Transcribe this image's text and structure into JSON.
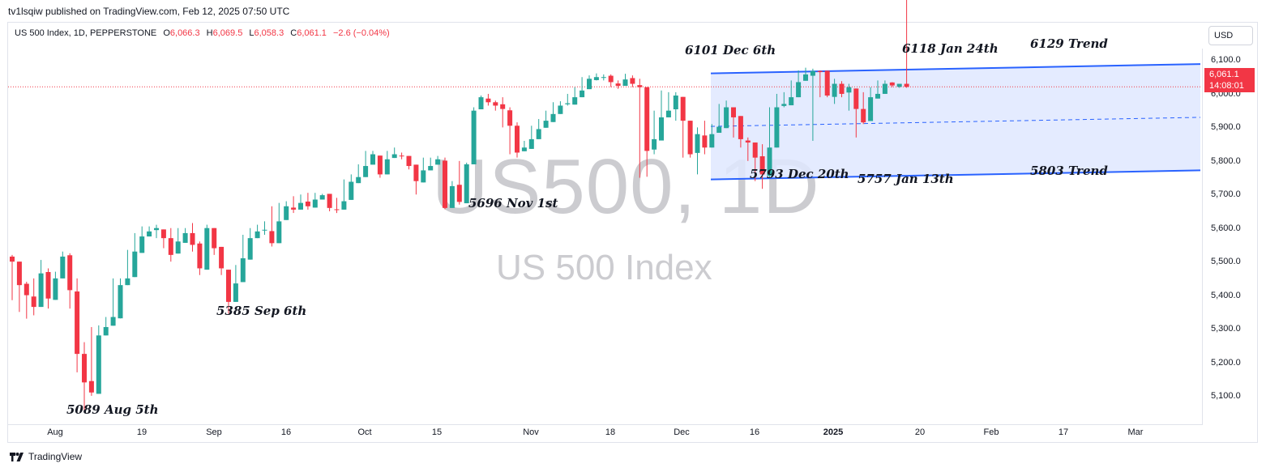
{
  "header": {
    "publisher_line": "tv1lsqiw published on TradingView.com, Feb 12, 2025 07:50 UTC"
  },
  "symbol_info": {
    "name": "US 500 Index, 1D, PEPPERSTONE",
    "open_label": "O",
    "open": "6,066.3",
    "high_label": "H",
    "high": "6,069.5",
    "low_label": "L",
    "low": "6,058.3",
    "close_label": "C",
    "close": "6,061.1",
    "change": "−2.6 (−0.04%)"
  },
  "currency_button": "USD",
  "watermark": {
    "symbol": "US500, 1D",
    "description": "US 500 Index"
  },
  "last_price": {
    "price": "6,061.1",
    "countdown": "14:08:01"
  },
  "footer": {
    "brand": "TradingView"
  },
  "colors": {
    "up": "#26a69a",
    "down": "#f23645",
    "channel_line": "#2962ff",
    "channel_fill": "#dfe8ff",
    "last_price": "#f23645"
  },
  "annotations": [
    {
      "text": "6101 Dec 6th"
    },
    {
      "text": "6118 Jan 24th"
    },
    {
      "text": "6129 Trend"
    },
    {
      "text": "5793 Dec 20th"
    },
    {
      "text": "5757 Jan 13th"
    },
    {
      "text": "5803 Trend"
    },
    {
      "text": "5696 Nov 1st"
    },
    {
      "text": "5385 Sep 6th"
    },
    {
      "text": "5089 Aug 5th"
    }
  ],
  "chart_data": {
    "type": "candlestick",
    "price_ticks": [
      "6,100.0",
      "6,000.0",
      "5,900.0",
      "5,800.0",
      "5,700.0",
      "5,600.0",
      "5,500.0",
      "5,400.0",
      "5,300.0",
      "5,200.0",
      "5,100.0"
    ],
    "time_ticks": [
      "Aug",
      "19",
      "Sep",
      "16",
      "Oct",
      "15",
      "Nov",
      "18",
      "Dec",
      "16",
      "2025",
      "20",
      "Feb",
      "17",
      "Mar"
    ],
    "ylim": [
      5065,
      6175
    ],
    "channel": {
      "upper": [
        6101,
        6129
      ],
      "lower": [
        5785,
        5812
      ],
      "mid": [
        5943,
        5970
      ]
    },
    "last_price_value": 6061.1,
    "closes": [
      5540,
      5470,
      5440,
      5405,
      5505,
      5430,
      5490,
      5555,
      5455,
      5265,
      5180,
      5150,
      5320,
      5345,
      5375,
      5470,
      5490,
      5570,
      5615,
      5630,
      5640,
      5610,
      5560,
      5600,
      5625,
      5590,
      5520,
      5640,
      5580,
      5520,
      5420,
      5475,
      5550,
      5610,
      5630,
      5635,
      5595,
      5660,
      5705,
      5695,
      5715,
      5705,
      5725,
      5738,
      5700,
      5695,
      5720,
      5778,
      5792,
      5825,
      5860,
      5800,
      5845,
      5860,
      5855,
      5825,
      5780,
      5812,
      5825,
      5845,
      5700,
      5765,
      5718,
      5830,
      5990,
      6030,
      6015,
      6005,
      5995,
      5945,
      5865,
      5880,
      5905,
      5935,
      5960,
      5980,
      6005,
      6012,
      6030,
      6050,
      6085,
      6090,
      6090,
      6075,
      6064,
      6083,
      6070,
      6060,
      5870,
      5905,
      5970,
      5990,
      6035,
      5960,
      5860,
      5920,
      5880,
      5920,
      5942,
      6000,
      5970,
      5905,
      5895,
      5850,
      5800,
      5880,
      6000,
      6010,
      6030,
      6075,
      6098,
      6108,
      6105,
      6035,
      6070,
      6040,
      6060,
      5995,
      5955,
      6030,
      6040,
      6070,
      6065,
      6070,
      6061
    ],
    "lows": [
      5425,
      5390,
      5370,
      5380,
      5460,
      5400,
      5440,
      5510,
      5400,
      5210,
      5090,
      5140,
      5300,
      5330,
      5365,
      5450,
      5480,
      5550,
      5600,
      5620,
      5610,
      5580,
      5540,
      5585,
      5605,
      5570,
      5500,
      5625,
      5560,
      5500,
      5385,
      5465,
      5540,
      5600,
      5620,
      5620,
      5585,
      5645,
      5690,
      5685,
      5700,
      5695,
      5712,
      5725,
      5690,
      5685,
      5710,
      5770,
      5785,
      5815,
      5840,
      5790,
      5835,
      5850,
      5845,
      5815,
      5740,
      5800,
      5815,
      5835,
      5696,
      5740,
      5710,
      5825,
      5980,
      6015,
      6005,
      5990,
      5940,
      5860,
      5850,
      5870,
      5895,
      5925,
      5950,
      5970,
      5995,
      6005,
      6020,
      6045,
      6070,
      6080,
      6080,
      6060,
      6055,
      6065,
      6060,
      5790,
      5793,
      5860,
      5960,
      5985,
      5960,
      5850,
      5850,
      5800,
      5860,
      5910,
      5930,
      5950,
      5910,
      5880,
      5840,
      5780,
      5757,
      5790,
      5985,
      6000,
      6020,
      6070,
      6090,
      5900,
      6030,
      6030,
      6010,
      6030,
      5990,
      5910,
      5950,
      6010,
      6030,
      6060,
      6060,
      6058,
      6058
    ],
    "highs": [
      5560,
      5475,
      5480,
      5490,
      5545,
      5520,
      5510,
      5570,
      5565,
      5490,
      5300,
      5345,
      5350,
      5375,
      5490,
      5490,
      5575,
      5625,
      5645,
      5645,
      5650,
      5630,
      5640,
      5640,
      5640,
      5655,
      5600,
      5650,
      5580,
      5540,
      5515,
      5530,
      5620,
      5640,
      5650,
      5660,
      5705,
      5715,
      5720,
      5735,
      5740,
      5745,
      5745,
      5742,
      5725,
      5730,
      5785,
      5800,
      5830,
      5870,
      5870,
      5855,
      5870,
      5880,
      5865,
      5855,
      5790,
      5850,
      5850,
      5855,
      5850,
      5780,
      5840,
      5835,
      6000,
      6035,
      6040,
      6020,
      6030,
      6000,
      5955,
      5900,
      5945,
      5965,
      5990,
      6015,
      6018,
      6040,
      6060,
      6090,
      6095,
      6101,
      6098,
      6098,
      6080,
      6100,
      6095,
      6085,
      5930,
      5990,
      6050,
      6045,
      6045,
      5970,
      5960,
      5940,
      5960,
      5950,
      6010,
      6020,
      5990,
      5940,
      5910,
      5875,
      5890,
      6000,
      6040,
      6045,
      6080,
      6110,
      6118,
      6115,
      6110,
      6080,
      6085,
      6078,
      6070,
      6030,
      6045,
      6060,
      6080,
      6080,
      6075,
      6069
    ]
  }
}
